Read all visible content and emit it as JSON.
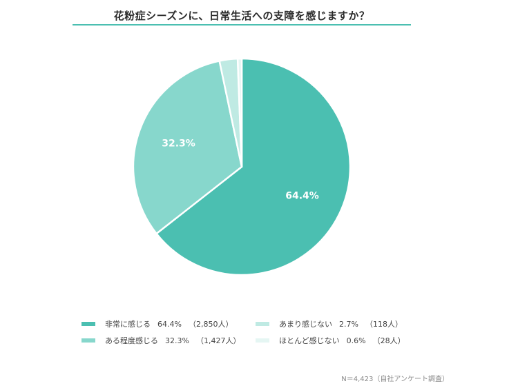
{
  "title": "花粉症シーズンに、日常生活への支障を感じますか？",
  "note": "N＝4,423（自社アンケート調査）",
  "colors": {
    "accent": "#4bbfb1"
  },
  "chart_data": {
    "type": "pie",
    "title": "花粉症シーズンに、日常生活への支障を感じますか？",
    "series": [
      {
        "label": "非常に感じる",
        "percent": 64.4,
        "percent_text": "64.4%",
        "count_text": "（2,850人）",
        "color": "#4bbfb1",
        "show_label": true
      },
      {
        "label": "ある程度感じる",
        "percent": 32.3,
        "percent_text": "32.3%",
        "count_text": "（1,427人）",
        "color": "#87d7cc",
        "show_label": true
      },
      {
        "label": "あまり感じない",
        "percent": 2.7,
        "percent_text": "2.7%",
        "count_text": "（118人）",
        "color": "#bfeae3",
        "show_label": false
      },
      {
        "label": "ほとんど感じない",
        "percent": 0.6,
        "percent_text": "0.6%",
        "count_text": "（28人）",
        "color": "#e5f6f3",
        "show_label": false
      }
    ],
    "counts": [
      2850,
      1427,
      118,
      28
    ],
    "total": 4423,
    "start_angle": "12 o'clock",
    "direction": "clockwise",
    "legend_position": "bottom"
  }
}
